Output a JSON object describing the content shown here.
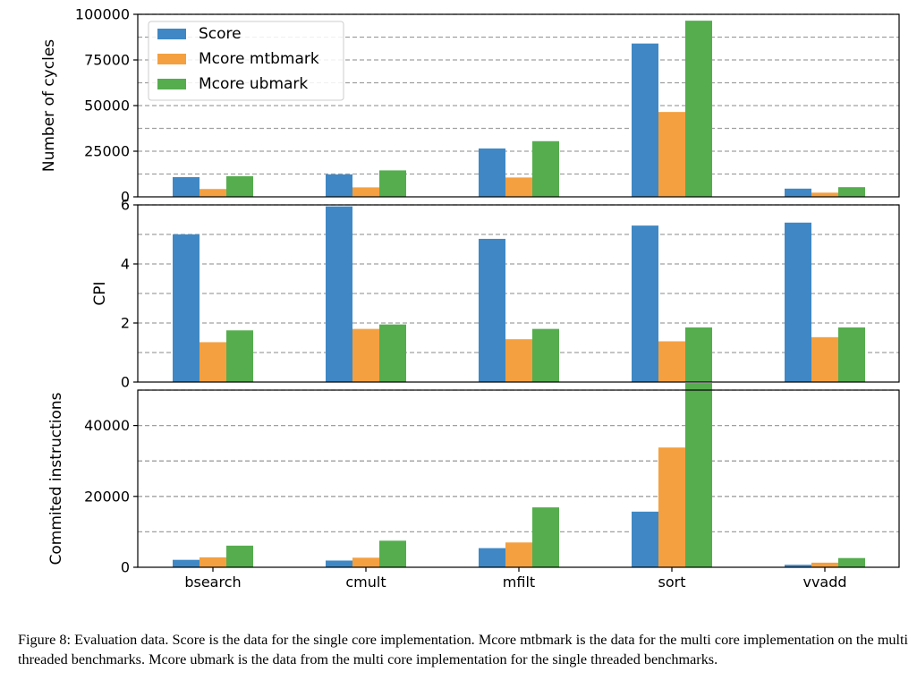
{
  "chart_data": {
    "type": "bar",
    "categories": [
      "bsearch",
      "cmult",
      "mfilt",
      "sort",
      "vvadd"
    ],
    "legend": {
      "placement": "top-left"
    },
    "colors": [
      "#3f88c5",
      "#f4a040",
      "#55ad4e"
    ],
    "grid": true,
    "panels": [
      {
        "ylabel": "Number of cycles",
        "ylim": [
          0,
          100000
        ],
        "yticks": [
          0,
          25000,
          50000,
          75000,
          100000
        ],
        "series": [
          {
            "name": "Score",
            "values": [
              10800,
              12300,
              26500,
              84000,
              4500
            ]
          },
          {
            "name": "Mcore mtbmark",
            "values": [
              4300,
              5200,
              10600,
              46500,
              2300
            ]
          },
          {
            "name": "Mcore ubmark",
            "values": [
              11300,
              14500,
              30500,
              96500,
              5300
            ]
          }
        ]
      },
      {
        "ylabel": "CPI",
        "ylim": [
          0,
          6
        ],
        "yticks": [
          0,
          2,
          4,
          6
        ],
        "series": [
          {
            "name": "Score",
            "values": [
              5.0,
              5.95,
              4.85,
              5.3,
              5.4
            ]
          },
          {
            "name": "Mcore mtbmark",
            "values": [
              1.35,
              1.8,
              1.45,
              1.38,
              1.52
            ]
          },
          {
            "name": "Mcore ubmark",
            "values": [
              1.75,
              1.95,
              1.8,
              1.85,
              1.85
            ]
          }
        ]
      },
      {
        "ylabel": "Commited instructions",
        "ylim": [
          0,
          50000
        ],
        "yticks": [
          0,
          20000,
          40000
        ],
        "series": [
          {
            "name": "Score",
            "values": [
              2100,
              1900,
              5400,
              15700,
              700
            ]
          },
          {
            "name": "Mcore mtbmark",
            "values": [
              2800,
              2700,
              7000,
              33800,
              1300
            ]
          },
          {
            "name": "Mcore ubmark",
            "values": [
              6100,
              7500,
              16900,
              52000,
              2600
            ]
          }
        ]
      }
    ]
  },
  "caption": "Figure 8: Evaluation data. Score is the data for the single core implementation. Mcore mtbmark is the data for the multi core implementation on the multi threaded benchmarks. Mcore ubmark is the data from the multi core implementation for the single threaded benchmarks."
}
